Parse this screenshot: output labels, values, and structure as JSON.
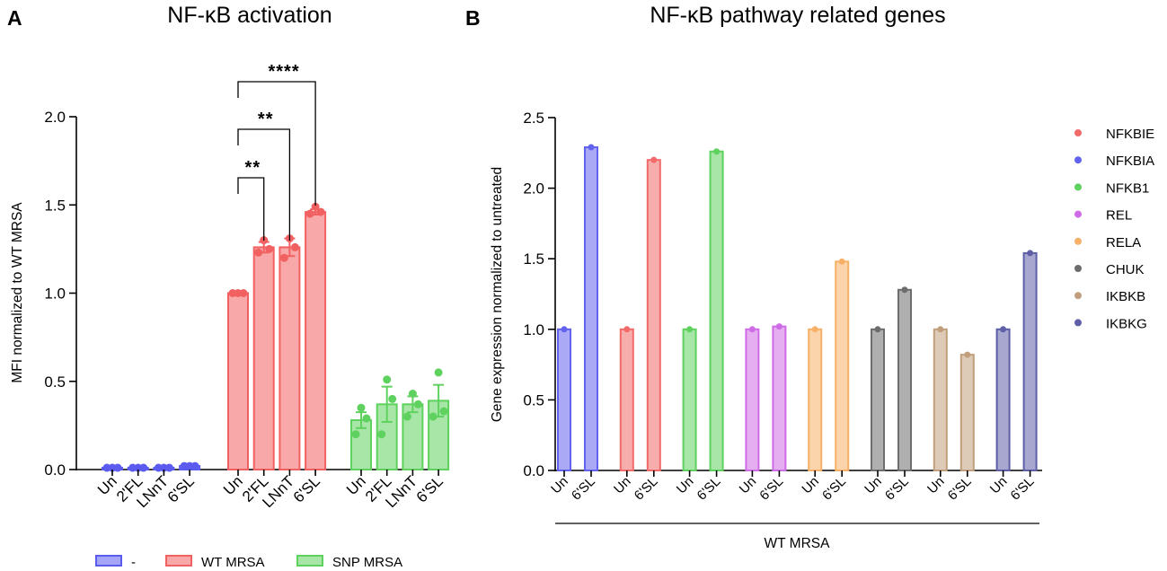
{
  "chart_data": [
    {
      "panel": "A",
      "type": "bar",
      "title": "NF-κB activation",
      "ylabel": "MFI normalized to WT MRSA",
      "xlabel": "",
      "ylim": [
        0,
        2.0
      ],
      "yticks": [
        "0.0",
        "0.5",
        "1.0",
        "1.5",
        "2.0"
      ],
      "groups": [
        {
          "name": "-",
          "color": "#5b5bf0",
          "categories": [
            "Un",
            "2'FL",
            "LNnT",
            "6'SL"
          ],
          "values": [
            0.01,
            0.01,
            0.01,
            0.02
          ],
          "errors": [
            0.0,
            0.0,
            0.0,
            0.005
          ],
          "points": [
            [
              0.01,
              0.01,
              0.01
            ],
            [
              0.01,
              0.01,
              0.01
            ],
            [
              0.01,
              0.01,
              0.01
            ],
            [
              0.02,
              0.02,
              0.02
            ]
          ]
        },
        {
          "name": "WT MRSA",
          "color": "#f26161",
          "categories": [
            "Un",
            "2'FL",
            "LNnT",
            "6'SL"
          ],
          "values": [
            1.0,
            1.26,
            1.26,
            1.46
          ],
          "errors": [
            0.0,
            0.03,
            0.05,
            0.015
          ],
          "points": [
            [
              1.0,
              1.0,
              1.0
            ],
            [
              1.23,
              1.25,
              1.3
            ],
            [
              1.2,
              1.26,
              1.31
            ],
            [
              1.45,
              1.46,
              1.49
            ]
          ]
        },
        {
          "name": "SNP MRSA",
          "color": "#5ed15e",
          "categories": [
            "Un",
            "2'FL",
            "LNnT",
            "6'SL"
          ],
          "values": [
            0.28,
            0.37,
            0.37,
            0.39
          ],
          "errors": [
            0.045,
            0.1,
            0.045,
            0.09
          ],
          "points": [
            [
              0.2,
              0.29,
              0.35
            ],
            [
              0.2,
              0.4,
              0.51
            ],
            [
              0.3,
              0.37,
              0.43
            ],
            [
              0.3,
              0.33,
              0.55
            ]
          ]
        }
      ],
      "significance": [
        {
          "from": "WT MRSA Un",
          "to": "WT MRSA 2'FL",
          "label": "**"
        },
        {
          "from": "WT MRSA Un",
          "to": "WT MRSA LNnT",
          "label": "**"
        },
        {
          "from": "WT MRSA Un",
          "to": "WT MRSA 6'SL",
          "label": "****"
        }
      ],
      "legend": [
        "-",
        "WT MRSA",
        "SNP MRSA"
      ],
      "legend_position": "bottom"
    },
    {
      "panel": "B",
      "type": "bar",
      "title": "NF-κB pathway related genes",
      "ylabel": "Gene expression normalized to untreated",
      "xlabel": "WT MRSA",
      "ylim": [
        0,
        2.5
      ],
      "yticks": [
        "0.0",
        "0.5",
        "1.0",
        "1.5",
        "2.0",
        "2.5"
      ],
      "categories": [
        "Un",
        "6'SL"
      ],
      "series": [
        {
          "name": "NFKBIE",
          "color": "#f26a6a",
          "values": [
            1.0,
            2.2
          ]
        },
        {
          "name": "NFKBIA",
          "color": "#6262ef",
          "values": [
            1.0,
            2.29
          ]
        },
        {
          "name": "NFKB1",
          "color": "#5ed15e",
          "values": [
            1.0,
            2.26
          ]
        },
        {
          "name": "REL",
          "color": "#cf6be6",
          "values": [
            1.0,
            1.02
          ]
        },
        {
          "name": "RELA",
          "color": "#f7b067",
          "values": [
            1.0,
            1.48
          ]
        },
        {
          "name": "CHUK",
          "color": "#6d6d6d",
          "values": [
            1.0,
            1.28
          ]
        },
        {
          "name": "IKBKB",
          "color": "#c19f7c",
          "values": [
            1.0,
            0.82
          ]
        },
        {
          "name": "IKBKG",
          "color": "#5f5fa7",
          "values": [
            1.0,
            1.54
          ]
        }
      ],
      "plot_order": [
        "NFKBIA",
        "NFKBIE",
        "NFKB1",
        "REL",
        "RELA",
        "CHUK",
        "IKBKB",
        "IKBKG"
      ],
      "legend_position": "right"
    }
  ]
}
